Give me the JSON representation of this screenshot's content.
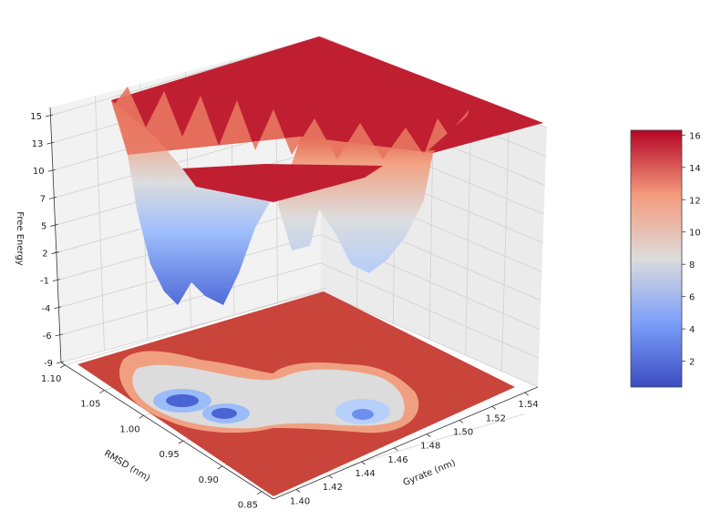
{
  "chart_data": {
    "type": "surface",
    "projection": "3d surface with filled contour on floor",
    "colormap": "coolwarm",
    "zlabel": "Free Energy",
    "xlabel": "Gyrate (nm)",
    "ylabel": "RMSD (nm)",
    "z_ticks": [
      "15",
      "13",
      "10",
      "7",
      "5",
      "2",
      "-1",
      "-4",
      "-6",
      "-9"
    ],
    "x_ticks": [
      "1.40",
      "1.42",
      "1.44",
      "1.46",
      "1.48",
      "1.50",
      "1.52",
      "1.54"
    ],
    "y_ticks": [
      "1.10",
      "1.05",
      "1.00",
      "0.95",
      "0.90",
      "0.85"
    ],
    "zlim": [
      -9,
      15
    ],
    "xlim": [
      1.39,
      1.55
    ],
    "ylim": [
      0.85,
      1.1
    ],
    "grid": true,
    "colorbar": {
      "ticks": [
        "16",
        "14",
        "12",
        "10",
        "8",
        "6",
        "4",
        "2"
      ],
      "range": [
        0.4,
        16.3
      ],
      "placement": "right"
    },
    "plateau_value": 16.3,
    "approx_minima": [
      {
        "gyrate": 1.41,
        "rmsd": 1.03,
        "free_energy": 0.5
      },
      {
        "gyrate": 1.42,
        "rmsd": 0.99,
        "free_energy": 0.8
      },
      {
        "gyrate": 1.48,
        "rmsd": 1.01,
        "free_energy": 3.5
      }
    ]
  }
}
